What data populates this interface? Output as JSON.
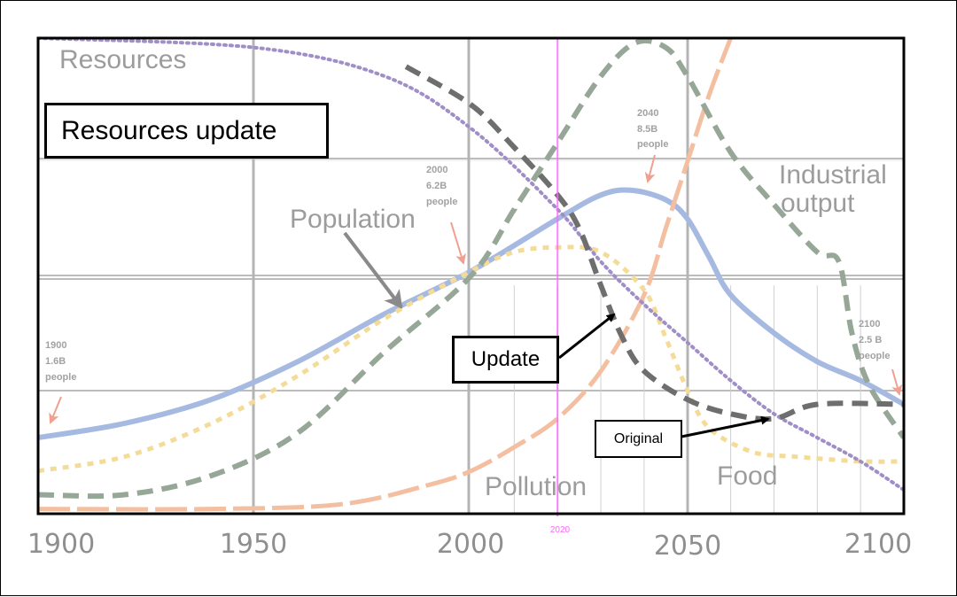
{
  "chart_data": {
    "type": "line",
    "title": "Resources update",
    "xlabel": "",
    "ylabel": "",
    "xlim": [
      1900,
      2100
    ],
    "ylim": [
      0,
      100
    ],
    "x_ticks": [
      "1900",
      "1950",
      "2000",
      "2050",
      "2100"
    ],
    "marker_year": {
      "x": 2020,
      "label": "2020",
      "color": "#ff66ff"
    },
    "series": [
      {
        "name": "Resources",
        "label": "Resources",
        "color": "#a08ec8",
        "style": "dotted",
        "points": [
          [
            1900,
            100
          ],
          [
            1950,
            98
          ],
          [
            1980,
            92
          ],
          [
            2000,
            81
          ],
          [
            2020,
            64
          ],
          [
            2030,
            53
          ],
          [
            2040,
            44
          ],
          [
            2050,
            36
          ],
          [
            2060,
            28
          ],
          [
            2070,
            21
          ],
          [
            2080,
            16
          ],
          [
            2090,
            11
          ],
          [
            2100,
            5
          ]
        ]
      },
      {
        "name": "Resources (update)",
        "label": "Update",
        "color": "#6e6e6e",
        "style": "dashed",
        "points": [
          [
            1985,
            94
          ],
          [
            2000,
            86
          ],
          [
            2010,
            77
          ],
          [
            2020,
            67
          ],
          [
            2025,
            60
          ],
          [
            2030,
            48
          ],
          [
            2035,
            37
          ],
          [
            2040,
            30
          ],
          [
            2050,
            24
          ],
          [
            2060,
            21
          ],
          [
            2070,
            20
          ],
          [
            2080,
            23
          ],
          [
            2100,
            23
          ]
        ]
      },
      {
        "name": "Industrial output",
        "label": "Industrial output",
        "color": "#97a797",
        "style": "dashed",
        "points": [
          [
            1900,
            4
          ],
          [
            1920,
            4
          ],
          [
            1940,
            8
          ],
          [
            1960,
            17
          ],
          [
            1980,
            34
          ],
          [
            2000,
            50
          ],
          [
            2010,
            64
          ],
          [
            2020,
            78
          ],
          [
            2030,
            92
          ],
          [
            2038,
            99
          ],
          [
            2045,
            98
          ],
          [
            2050,
            92
          ],
          [
            2060,
            76
          ],
          [
            2070,
            65
          ],
          [
            2080,
            55
          ],
          [
            2085,
            53
          ],
          [
            2088,
            38
          ],
          [
            2092,
            27
          ],
          [
            2100,
            16
          ]
        ]
      },
      {
        "name": "Population",
        "label": "Population",
        "color": "#a5b9e1",
        "style": "solid",
        "points": [
          [
            1900,
            16
          ],
          [
            1920,
            19
          ],
          [
            1940,
            24
          ],
          [
            1960,
            32
          ],
          [
            1980,
            42
          ],
          [
            2000,
            51
          ],
          [
            2020,
            62
          ],
          [
            2030,
            67
          ],
          [
            2037,
            68
          ],
          [
            2045,
            66
          ],
          [
            2050,
            62
          ],
          [
            2055,
            54
          ],
          [
            2060,
            46
          ],
          [
            2070,
            38
          ],
          [
            2080,
            32
          ],
          [
            2090,
            28
          ],
          [
            2100,
            23
          ]
        ]
      },
      {
        "name": "Food",
        "label": "Food",
        "color": "#f4dc98",
        "style": "dotted-dash",
        "points": [
          [
            1900,
            9
          ],
          [
            1920,
            12
          ],
          [
            1940,
            19
          ],
          [
            1960,
            29
          ],
          [
            1980,
            41
          ],
          [
            2000,
            51
          ],
          [
            2010,
            55
          ],
          [
            2020,
            56
          ],
          [
            2030,
            55
          ],
          [
            2040,
            47
          ],
          [
            2045,
            37
          ],
          [
            2050,
            26
          ],
          [
            2055,
            18
          ],
          [
            2065,
            13
          ],
          [
            2075,
            12
          ],
          [
            2090,
            11
          ],
          [
            2100,
            11
          ]
        ]
      },
      {
        "name": "Pollution",
        "label": "Pollution",
        "color": "#f4bfa0",
        "style": "long-dash",
        "points": [
          [
            1900,
            1
          ],
          [
            1940,
            1
          ],
          [
            1970,
            2
          ],
          [
            1990,
            6
          ],
          [
            2000,
            9
          ],
          [
            2010,
            14
          ],
          [
            2020,
            20
          ],
          [
            2030,
            30
          ],
          [
            2040,
            46
          ],
          [
            2045,
            60
          ],
          [
            2050,
            74
          ],
          [
            2055,
            88
          ],
          [
            2060,
            100
          ]
        ]
      }
    ],
    "annotations": [
      {
        "text_lines": [
          "1900",
          "1.6B",
          "people"
        ],
        "year": 1900
      },
      {
        "text_lines": [
          "2000",
          "6.2B",
          "people"
        ],
        "year": 2000
      },
      {
        "text_lines": [
          "2040",
          "8.5B",
          "people"
        ],
        "year": 2040
      },
      {
        "text_lines": [
          "2100",
          "2.5 B",
          "people"
        ],
        "year": 2100
      }
    ],
    "callouts": {
      "title": "Resources update",
      "update": "Update",
      "original": "Original"
    }
  }
}
